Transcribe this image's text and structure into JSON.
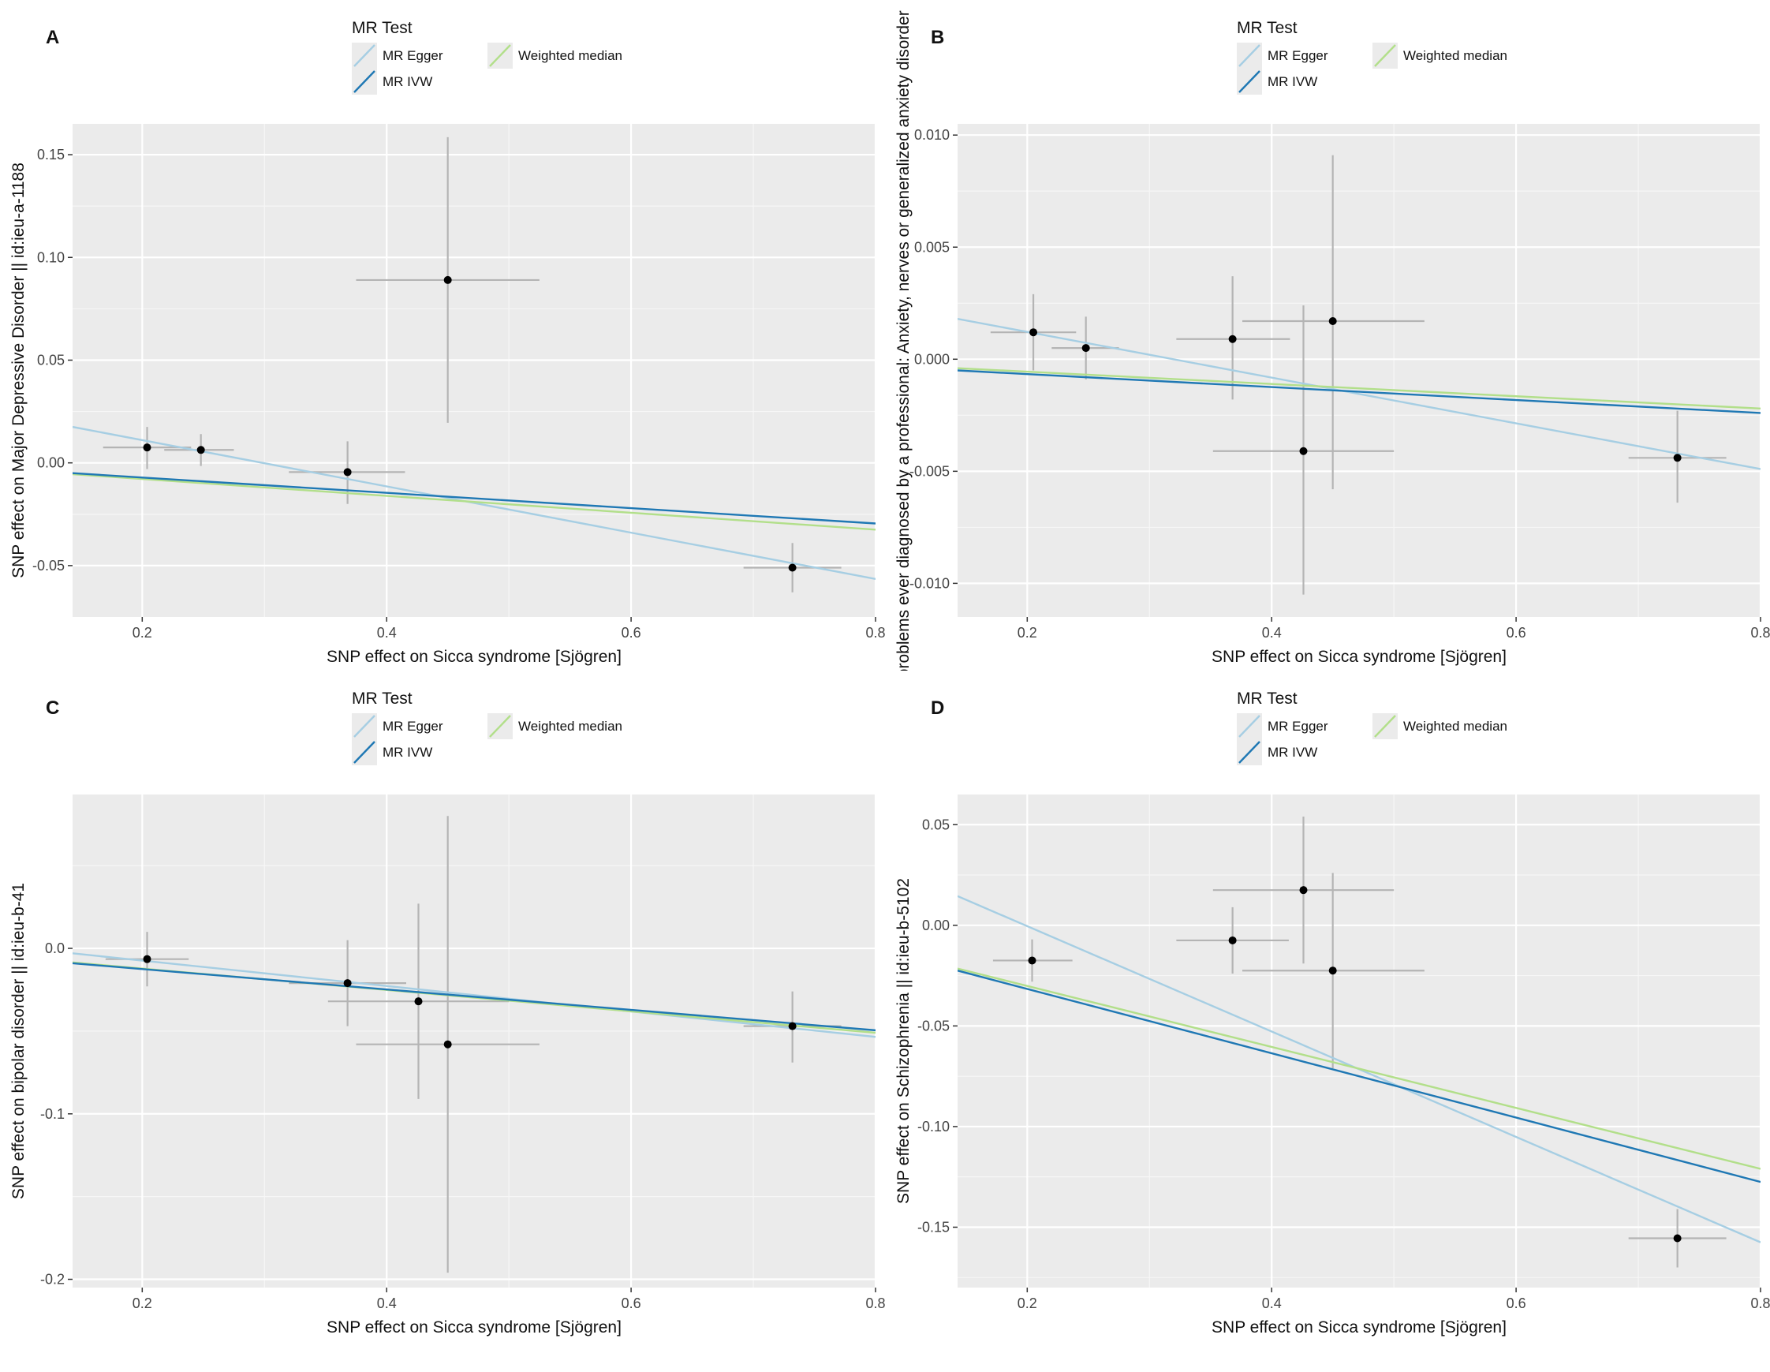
{
  "colors": {
    "panel_bg": "#ebebeb",
    "mr_egger": "#a6cee3",
    "mr_ivw": "#1f78b4",
    "weighted_median": "#b2df8a",
    "error_bar": "#b4b4b4",
    "point": "#000000"
  },
  "chart_data": [
    {
      "type": "scatter",
      "panel_label": "A",
      "legend": {
        "title": "MR Test",
        "entries": [
          {
            "key": "egger",
            "label": "MR Egger",
            "color": "#a6cee3"
          },
          {
            "key": "median",
            "label": "Weighted median",
            "color": "#b2df8a"
          },
          {
            "key": "ivw",
            "label": "MR IVW",
            "color": "#1f78b4"
          }
        ]
      },
      "xlabel": "SNP effect on Sicca syndrome [Sjögren]",
      "ylabel": "SNP effect on Major Depressive Disorder || id:ieu-a-1188",
      "xlim": [
        0.143,
        0.8
      ],
      "ylim": [
        -0.075,
        0.165
      ],
      "xticks": [
        {
          "value": 0.2,
          "label": "0.2"
        },
        {
          "value": 0.4,
          "label": "0.4"
        },
        {
          "value": 0.6,
          "label": "0.6"
        },
        {
          "value": 0.8,
          "label": "0.8"
        }
      ],
      "yticks": [
        {
          "value": -0.05,
          "label": "-0.05"
        },
        {
          "value": 0.0,
          "label": "0.00"
        },
        {
          "value": 0.05,
          "label": "0.05"
        },
        {
          "value": 0.1,
          "label": "0.10"
        },
        {
          "value": 0.15,
          "label": "0.15"
        }
      ],
      "points": [
        {
          "x": 0.204,
          "y": 0.0075,
          "xlo": 0.168,
          "xhi": 0.24,
          "ylo": -0.003,
          "yhi": 0.0175
        },
        {
          "x": 0.248,
          "y": 0.0063,
          "xlo": 0.218,
          "xhi": 0.275,
          "ylo": -0.0015,
          "yhi": 0.014
        },
        {
          "x": 0.368,
          "y": -0.0045,
          "xlo": 0.32,
          "xhi": 0.415,
          "ylo": -0.02,
          "yhi": 0.0105
        },
        {
          "x": 0.45,
          "y": 0.089,
          "xlo": 0.375,
          "xhi": 0.525,
          "ylo": 0.0195,
          "yhi": 0.1585
        },
        {
          "x": 0.732,
          "y": -0.051,
          "xlo": 0.692,
          "xhi": 0.772,
          "ylo": -0.063,
          "yhi": -0.039
        }
      ],
      "lines": [
        {
          "key": "egger",
          "x": [
            0.143,
            0.8
          ],
          "y": [
            0.0175,
            -0.0565
          ]
        },
        {
          "key": "median",
          "x": [
            0.143,
            0.8
          ],
          "y": [
            -0.0055,
            -0.0325
          ]
        },
        {
          "key": "ivw",
          "x": [
            0.143,
            0.8
          ],
          "y": [
            -0.005,
            -0.0295
          ]
        }
      ]
    },
    {
      "type": "scatter",
      "panel_label": "B",
      "legend": {
        "title": "MR Test",
        "entries": [
          {
            "key": "egger",
            "label": "MR Egger",
            "color": "#a6cee3"
          },
          {
            "key": "median",
            "label": "Weighted median",
            "color": "#b2df8a"
          },
          {
            "key": "ivw",
            "label": "MR IVW",
            "color": "#1f78b4"
          }
        ]
      },
      "xlabel": "SNP effect on Sicca syndrome [Sjögren]",
      "ylabel": "Health problems ever diagnosed by a professional: Anxiety, nerves or generalized anxiety disorder",
      "xlim": [
        0.143,
        0.8
      ],
      "ylim": [
        -0.0115,
        0.0105
      ],
      "xticks": [
        {
          "value": 0.2,
          "label": "0.2"
        },
        {
          "value": 0.4,
          "label": "0.4"
        },
        {
          "value": 0.6,
          "label": "0.6"
        },
        {
          "value": 0.8,
          "label": "0.8"
        }
      ],
      "yticks": [
        {
          "value": -0.01,
          "label": "-0.010"
        },
        {
          "value": -0.005,
          "label": "-0.005"
        },
        {
          "value": 0.0,
          "label": "0.000"
        },
        {
          "value": 0.005,
          "label": "0.005"
        },
        {
          "value": 0.01,
          "label": "0.010"
        }
      ],
      "points": [
        {
          "x": 0.205,
          "y": 0.0012,
          "xlo": 0.17,
          "xhi": 0.24,
          "ylo": -0.0005,
          "yhi": 0.0029
        },
        {
          "x": 0.248,
          "y": 0.0005,
          "xlo": 0.22,
          "xhi": 0.275,
          "ylo": -0.0009,
          "yhi": 0.0019
        },
        {
          "x": 0.368,
          "y": 0.0009,
          "xlo": 0.322,
          "xhi": 0.415,
          "ylo": -0.0018,
          "yhi": 0.0037
        },
        {
          "x": 0.426,
          "y": -0.0041,
          "xlo": 0.352,
          "xhi": 0.5,
          "ylo": -0.0105,
          "yhi": 0.0024
        },
        {
          "x": 0.45,
          "y": 0.0017,
          "xlo": 0.376,
          "xhi": 0.525,
          "ylo": -0.0058,
          "yhi": 0.0091
        },
        {
          "x": 0.732,
          "y": -0.0044,
          "xlo": 0.692,
          "xhi": 0.772,
          "ylo": -0.0064,
          "yhi": -0.0023
        }
      ],
      "lines": [
        {
          "key": "egger",
          "x": [
            0.143,
            0.8
          ],
          "y": [
            0.0018,
            -0.0049
          ]
        },
        {
          "key": "median",
          "x": [
            0.143,
            0.8
          ],
          "y": [
            -0.0004,
            -0.0022
          ]
        },
        {
          "key": "ivw",
          "x": [
            0.143,
            0.8
          ],
          "y": [
            -0.0005,
            -0.0024
          ]
        }
      ]
    },
    {
      "type": "scatter",
      "panel_label": "C",
      "legend": {
        "title": "MR Test",
        "entries": [
          {
            "key": "egger",
            "label": "MR Egger",
            "color": "#a6cee3"
          },
          {
            "key": "median",
            "label": "Weighted median",
            "color": "#b2df8a"
          },
          {
            "key": "ivw",
            "label": "MR IVW",
            "color": "#1f78b4"
          }
        ]
      },
      "xlabel": "SNP effect on Sicca syndrome [Sjögren]",
      "ylabel": "SNP effect on bipolar disorder || id:ieu-b-41",
      "xlim": [
        0.143,
        0.8
      ],
      "ylim": [
        -0.205,
        0.093
      ],
      "xticks": [
        {
          "value": 0.2,
          "label": "0.2"
        },
        {
          "value": 0.4,
          "label": "0.4"
        },
        {
          "value": 0.6,
          "label": "0.6"
        },
        {
          "value": 0.8,
          "label": "0.8"
        }
      ],
      "yticks": [
        {
          "value": -0.2,
          "label": "-0.2"
        },
        {
          "value": -0.1,
          "label": "-0.1"
        },
        {
          "value": 0.0,
          "label": "0.0"
        }
      ],
      "points": [
        {
          "x": 0.204,
          "y": -0.0065,
          "xlo": 0.17,
          "xhi": 0.238,
          "ylo": -0.023,
          "yhi": 0.01
        },
        {
          "x": 0.368,
          "y": -0.021,
          "xlo": 0.32,
          "xhi": 0.416,
          "ylo": -0.047,
          "yhi": 0.005
        },
        {
          "x": 0.426,
          "y": -0.032,
          "xlo": 0.352,
          "xhi": 0.5,
          "ylo": -0.091,
          "yhi": 0.027
        },
        {
          "x": 0.45,
          "y": -0.058,
          "xlo": 0.375,
          "xhi": 0.525,
          "ylo": -0.196,
          "yhi": 0.08
        },
        {
          "x": 0.732,
          "y": -0.047,
          "xlo": 0.692,
          "xhi": 0.772,
          "ylo": -0.069,
          "yhi": -0.026
        }
      ],
      "lines": [
        {
          "key": "egger",
          "x": [
            0.143,
            0.8
          ],
          "y": [
            -0.003,
            -0.0535
          ]
        },
        {
          "key": "median",
          "x": [
            0.143,
            0.8
          ],
          "y": [
            -0.0085,
            -0.051
          ]
        },
        {
          "key": "ivw",
          "x": [
            0.143,
            0.8
          ],
          "y": [
            -0.009,
            -0.0495
          ]
        }
      ]
    },
    {
      "type": "scatter",
      "panel_label": "D",
      "legend": {
        "title": "MR Test",
        "entries": [
          {
            "key": "egger",
            "label": "MR Egger",
            "color": "#a6cee3"
          },
          {
            "key": "median",
            "label": "Weighted median",
            "color": "#b2df8a"
          },
          {
            "key": "ivw",
            "label": "MR IVW",
            "color": "#1f78b4"
          }
        ]
      },
      "xlabel": "SNP effect on Sicca syndrome [Sjögren]",
      "ylabel": "SNP effect on Schizophrenia || id:ieu-b-5102",
      "xlim": [
        0.143,
        0.8
      ],
      "ylim": [
        -0.18,
        0.065
      ],
      "xticks": [
        {
          "value": 0.2,
          "label": "0.2"
        },
        {
          "value": 0.4,
          "label": "0.4"
        },
        {
          "value": 0.6,
          "label": "0.6"
        },
        {
          "value": 0.8,
          "label": "0.8"
        }
      ],
      "yticks": [
        {
          "value": -0.15,
          "label": "-0.15"
        },
        {
          "value": -0.1,
          "label": "-0.10"
        },
        {
          "value": -0.05,
          "label": "-0.05"
        },
        {
          "value": 0.0,
          "label": "0.00"
        },
        {
          "value": 0.05,
          "label": "0.05"
        }
      ],
      "points": [
        {
          "x": 0.204,
          "y": -0.0175,
          "xlo": 0.172,
          "xhi": 0.237,
          "ylo": -0.028,
          "yhi": -0.007
        },
        {
          "x": 0.368,
          "y": -0.0075,
          "xlo": 0.322,
          "xhi": 0.414,
          "ylo": -0.024,
          "yhi": 0.009
        },
        {
          "x": 0.426,
          "y": 0.0175,
          "xlo": 0.352,
          "xhi": 0.5,
          "ylo": -0.019,
          "yhi": 0.054
        },
        {
          "x": 0.45,
          "y": -0.0225,
          "xlo": 0.376,
          "xhi": 0.525,
          "ylo": -0.071,
          "yhi": 0.026
        },
        {
          "x": 0.732,
          "y": -0.1555,
          "xlo": 0.692,
          "xhi": 0.772,
          "ylo": -0.17,
          "yhi": -0.141
        }
      ],
      "lines": [
        {
          "key": "egger",
          "x": [
            0.143,
            0.8
          ],
          "y": [
            0.0145,
            -0.1575
          ]
        },
        {
          "key": "median",
          "x": [
            0.143,
            0.8
          ],
          "y": [
            -0.0215,
            -0.121
          ]
        },
        {
          "key": "ivw",
          "x": [
            0.143,
            0.8
          ],
          "y": [
            -0.0225,
            -0.1275
          ]
        }
      ]
    }
  ]
}
